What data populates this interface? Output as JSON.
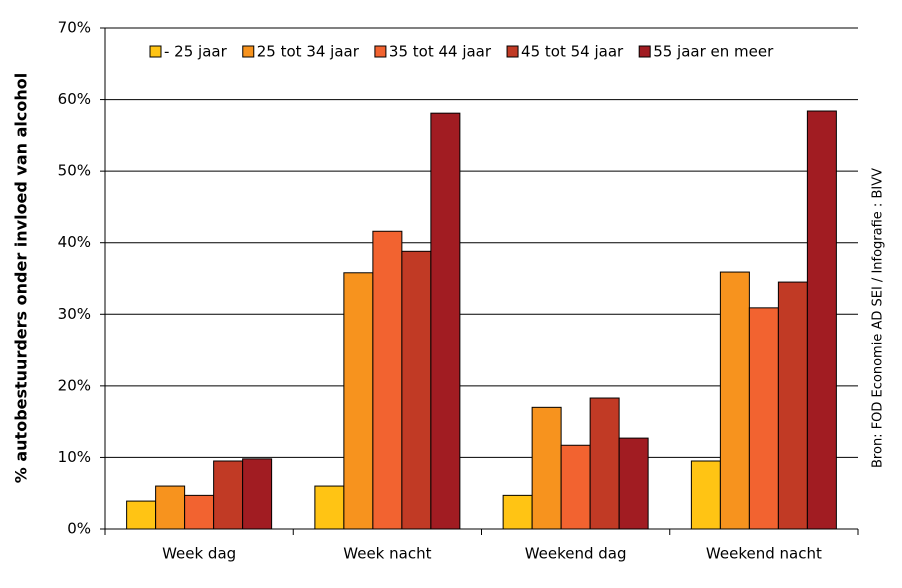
{
  "chart_data": {
    "type": "bar",
    "y_label": "% autobestuurders onder invloed van alcohol",
    "source": "Bron: FOD Economie AD SEI / Infografie : BIVV",
    "categories": [
      "Week dag",
      "Week nacht",
      "Weekend dag",
      "Weekend nacht"
    ],
    "series": [
      {
        "name": "- 25 jaar",
        "color": "#ffc414",
        "values": [
          3.9,
          6.0,
          4.7,
          9.5
        ]
      },
      {
        "name": "25 tot 34 jaar",
        "color": "#f7931e",
        "values": [
          6.0,
          35.8,
          17.0,
          35.9
        ]
      },
      {
        "name": "35 tot 44 jaar",
        "color": "#f26330",
        "values": [
          4.7,
          41.6,
          11.7,
          30.9
        ]
      },
      {
        "name": "45 tot 54 jaar",
        "color": "#c13a25",
        "values": [
          9.5,
          38.8,
          18.3,
          34.5
        ]
      },
      {
        "name": "55 jaar en meer",
        "color": "#a11c22",
        "values": [
          9.8,
          58.1,
          12.7,
          58.4
        ]
      }
    ],
    "ylim": [
      0,
      70
    ],
    "yticks": [
      {
        "value": 0,
        "label": "0%"
      },
      {
        "value": 10,
        "label": "10%"
      },
      {
        "value": 20,
        "label": "20%"
      },
      {
        "value": 30,
        "label": "30%"
      },
      {
        "value": 40,
        "label": "40%"
      },
      {
        "value": 50,
        "label": "50%"
      },
      {
        "value": 60,
        "label": "60%"
      },
      {
        "value": 70,
        "label": "70%"
      }
    ],
    "grid": true,
    "legend": "top"
  }
}
